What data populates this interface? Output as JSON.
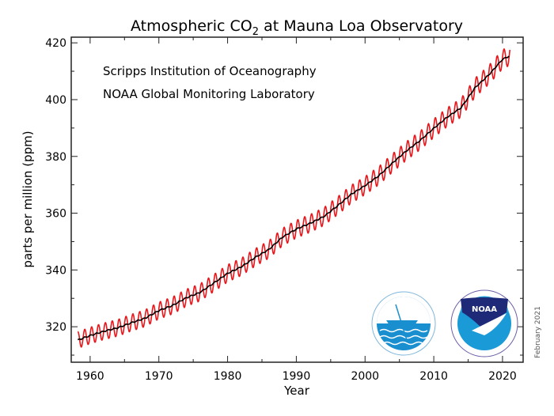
{
  "chart_data": {
    "type": "line",
    "title": "Atmospheric CO",
    "title_subscript": "2",
    "title_suffix": " at Mauna Loa Observatory",
    "annotations": [
      "Scripps Institution of Oceanography",
      "NOAA Global Monitoring Laboratory"
    ],
    "date_note": "February 2021",
    "xlabel": "Year",
    "ylabel": "parts per million (ppm)",
    "xlim": [
      1957.25,
      2023
    ],
    "ylim": [
      307.5,
      422
    ],
    "xticks": [
      1960,
      1970,
      1980,
      1990,
      2000,
      2010,
      2020
    ],
    "yticks": [
      320,
      340,
      360,
      380,
      400,
      420
    ],
    "grid": false,
    "series": [
      {
        "kind": "monthly",
        "color": "#e8161b",
        "seasonal_amplitude_ppm": 3.2
      },
      {
        "kind": "trend",
        "color": "#000000",
        "x": [
          1958.2,
          1960,
          1962,
          1964,
          1966,
          1968,
          1970,
          1972,
          1974,
          1976,
          1978,
          1980,
          1982,
          1984,
          1986,
          1988,
          1990,
          1992,
          1994,
          1996,
          1998,
          2000,
          2002,
          2004,
          2006,
          2008,
          2010,
          2012,
          2014,
          2016,
          2018,
          2020,
          2021.1
        ],
        "y": [
          315.3,
          316.9,
          318.4,
          319.6,
          321.4,
          323.0,
          325.7,
          327.5,
          330.2,
          332.1,
          335.4,
          338.8,
          341.1,
          344.4,
          347.2,
          351.6,
          354.4,
          356.4,
          358.8,
          362.6,
          366.7,
          369.7,
          373.2,
          377.7,
          381.9,
          385.6,
          389.9,
          393.9,
          397.2,
          404.2,
          408.7,
          414.2,
          415.5
        ]
      }
    ],
    "logos": [
      "Scripps Institution of Oceanography",
      "NOAA"
    ]
  }
}
